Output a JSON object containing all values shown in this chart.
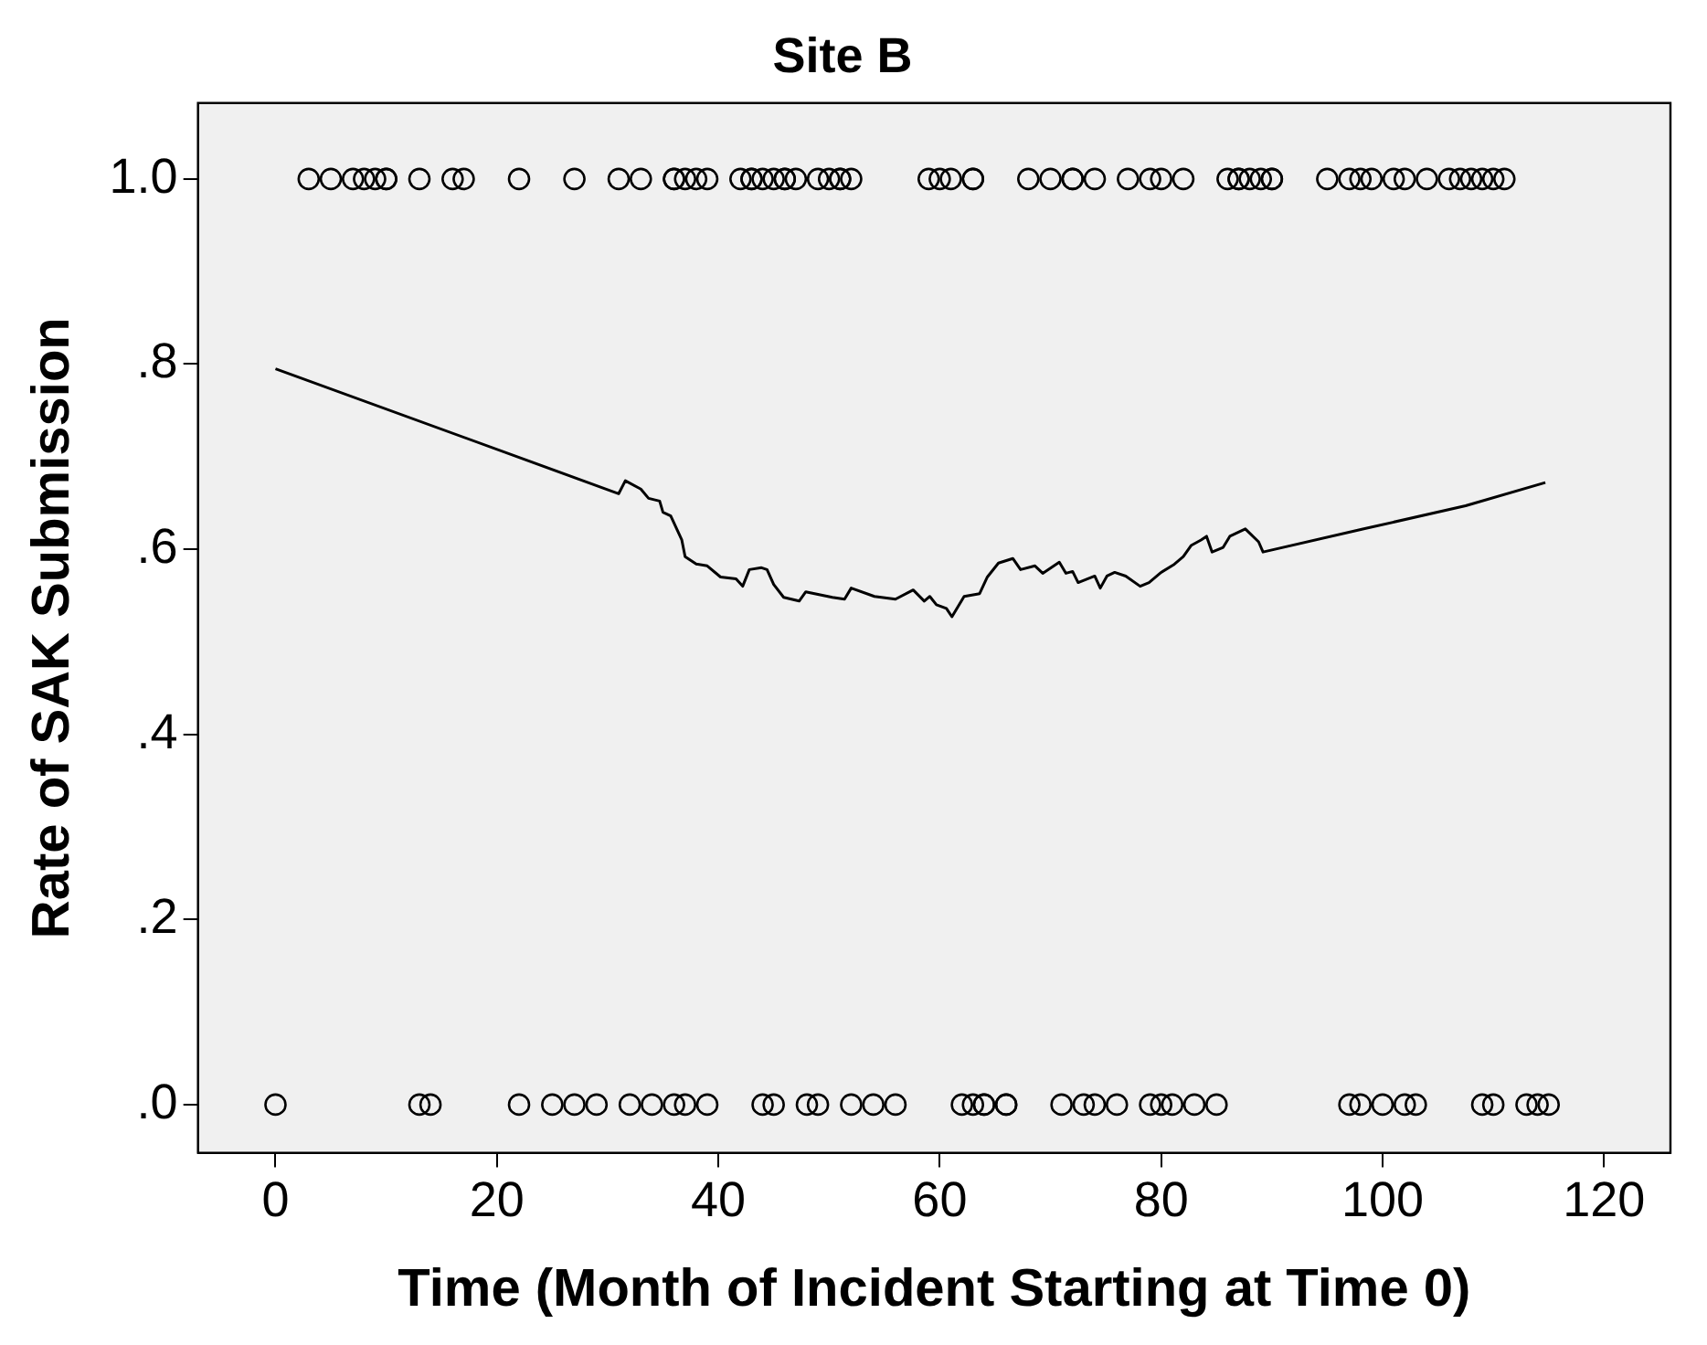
{
  "chart_data": {
    "type": "scatter",
    "title": "Site B",
    "xlabel": "Time (Month of Incident Starting at Time 0)",
    "ylabel": "Rate of SAK Submission",
    "xlim": [
      -7,
      126
    ],
    "xticks": [
      0,
      20,
      40,
      60,
      80,
      100,
      120
    ],
    "ylim": [
      -0.052,
      1.082
    ],
    "yticks": [
      {
        "value": 0,
        "label": ".0"
      },
      {
        "value": 0.2,
        "label": ".2"
      },
      {
        "value": 0.4,
        "label": ".4"
      },
      {
        "value": 0.6,
        "label": ".6"
      },
      {
        "value": 0.8,
        "label": ".8"
      },
      {
        "value": 1,
        "label": "1.0"
      }
    ],
    "grid": false,
    "legend": false,
    "marker": "circle",
    "series": [
      {
        "type": "scatter",
        "color": "#000000",
        "x": [
          3,
          5,
          7,
          8,
          9,
          10,
          10,
          13,
          16,
          17,
          22,
          27,
          31,
          33,
          36,
          36,
          37,
          38,
          39,
          42,
          43,
          43,
          44,
          45,
          46,
          46,
          47,
          49,
          50,
          51,
          51,
          52,
          59,
          60,
          61,
          63,
          63,
          68,
          70,
          72,
          72,
          74,
          77,
          79,
          80,
          82,
          86,
          87,
          87,
          88,
          89,
          90,
          90,
          95,
          97,
          98,
          99,
          101,
          102,
          104,
          106,
          107,
          108,
          109,
          110,
          111,
          0,
          13,
          14,
          22,
          25,
          27,
          29,
          32,
          34,
          36,
          37,
          39,
          44,
          45,
          48,
          49,
          52,
          54,
          56,
          62,
          63,
          64,
          64,
          66,
          66,
          71,
          73,
          74,
          76,
          79,
          80,
          81,
          83,
          85,
          97,
          98,
          100,
          102,
          103,
          109,
          110,
          113,
          114,
          115
        ],
        "values": [
          1,
          1,
          1,
          1,
          1,
          1,
          1,
          1,
          1,
          1,
          1,
          1,
          1,
          1,
          1,
          1,
          1,
          1,
          1,
          1,
          1,
          1,
          1,
          1,
          1,
          1,
          1,
          1,
          1,
          1,
          1,
          1,
          1,
          1,
          1,
          1,
          1,
          1,
          1,
          1,
          1,
          1,
          1,
          1,
          1,
          1,
          1,
          1,
          1,
          1,
          1,
          1,
          1,
          1,
          1,
          1,
          1,
          1,
          1,
          1,
          1,
          1,
          1,
          1,
          1,
          1,
          0,
          0,
          0,
          0,
          0,
          0,
          0,
          0,
          0,
          0,
          0,
          0,
          0,
          0,
          0,
          0,
          0,
          0,
          0,
          0,
          0,
          0,
          0,
          0,
          0,
          0,
          0,
          0,
          0,
          0,
          0,
          0,
          0,
          0,
          0,
          0,
          0,
          0,
          0,
          0,
          0,
          0,
          0,
          0
        ]
      },
      {
        "type": "line",
        "color": "#000000",
        "marker": "none",
        "x": [
          0,
          31,
          31.6,
          33,
          33.7,
          34.7,
          35,
          35.7,
          36.7,
          37,
          38,
          39,
          40.2,
          41.6,
          42.2,
          42.8,
          43.9,
          44.4,
          45,
          45.9,
          47.3,
          47.9,
          50.3,
          51.4,
          52,
          54.1,
          56,
          57.6,
          58.6,
          59.1,
          59.7,
          60.6,
          61.1,
          62.2,
          63.6,
          64.3,
          65.3,
          66.6,
          67.3,
          68.6,
          69.3,
          70.8,
          71.4,
          72,
          72.5,
          74,
          74.5,
          75.1,
          75.8,
          76.8,
          78.1,
          78.9,
          80,
          81.1,
          82,
          82.7,
          83.6,
          84.1,
          84.6,
          85.6,
          86.2,
          87.6,
          88.8,
          89.2,
          98.3,
          107.5,
          114.7
        ],
        "values": [
          0.795,
          0.66,
          0.674,
          0.665,
          0.655,
          0.652,
          0.64,
          0.636,
          0.61,
          0.592,
          0.584,
          0.582,
          0.57,
          0.568,
          0.56,
          0.578,
          0.58,
          0.578,
          0.562,
          0.548,
          0.544,
          0.554,
          0.548,
          0.546,
          0.558,
          0.549,
          0.546,
          0.556,
          0.544,
          0.549,
          0.54,
          0.536,
          0.527,
          0.549,
          0.552,
          0.57,
          0.585,
          0.59,
          0.578,
          0.582,
          0.574,
          0.586,
          0.574,
          0.576,
          0.564,
          0.571,
          0.558,
          0.571,
          0.575,
          0.571,
          0.56,
          0.564,
          0.575,
          0.583,
          0.592,
          0.604,
          0.61,
          0.614,
          0.597,
          0.602,
          0.614,
          0.622,
          0.608,
          0.597,
          0.622,
          0.647,
          0.672
        ]
      }
    ]
  }
}
